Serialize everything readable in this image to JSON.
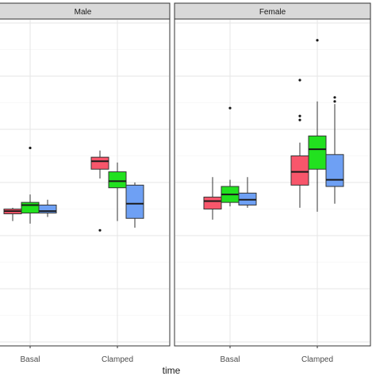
{
  "chart_data": {
    "type": "boxplot",
    "facets": [
      {
        "label": "Male",
        "categories": [
          "Basal",
          "Clamped"
        ],
        "groups": [
          [
            {
              "series": 0,
              "whisker_low": 4.55,
              "q1": 4.82,
              "median": 4.92,
              "q3": 5.0,
              "whisker_high": 5.05,
              "outliers": []
            },
            {
              "series": 1,
              "whisker_low": 4.45,
              "q1": 4.85,
              "median": 5.15,
              "q3": 5.25,
              "whisker_high": 5.55,
              "outliers": [
                7.3
              ]
            },
            {
              "series": 2,
              "whisker_low": 4.7,
              "q1": 4.85,
              "median": 4.92,
              "q3": 5.15,
              "whisker_high": 5.35,
              "outliers": []
            }
          ],
          [
            {
              "series": 0,
              "whisker_low": 6.15,
              "q1": 6.5,
              "median": 6.8,
              "q3": 6.95,
              "whisker_high": 7.2,
              "outliers": [
                4.2
              ]
            },
            {
              "series": 1,
              "whisker_low": 4.55,
              "q1": 5.8,
              "median": 6.05,
              "q3": 6.4,
              "whisker_high": 6.75,
              "outliers": []
            },
            {
              "series": 2,
              "whisker_low": 4.3,
              "q1": 4.65,
              "median": 5.2,
              "q3": 5.9,
              "whisker_high": 6.0,
              "outliers": []
            }
          ]
        ]
      },
      {
        "label": "Female",
        "categories": [
          "Basal",
          "Clamped"
        ],
        "groups": [
          [
            {
              "series": 0,
              "whisker_low": 4.6,
              "q1": 5.0,
              "median": 5.3,
              "q3": 5.45,
              "whisker_high": 6.2,
              "outliers": []
            },
            {
              "series": 1,
              "whisker_low": 5.1,
              "q1": 5.25,
              "median": 5.55,
              "q3": 5.85,
              "whisker_high": 6.1,
              "outliers": [
                8.8
              ]
            },
            {
              "series": 2,
              "whisker_low": 5.05,
              "q1": 5.15,
              "median": 5.35,
              "q3": 5.6,
              "whisker_high": 6.2,
              "outliers": []
            }
          ],
          [
            {
              "series": 0,
              "whisker_low": 5.05,
              "q1": 5.9,
              "median": 6.4,
              "q3": 7.0,
              "whisker_high": 7.5,
              "outliers": [
                9.85,
                8.5,
                8.35
              ]
            },
            {
              "series": 1,
              "whisker_low": 4.9,
              "q1": 6.5,
              "median": 7.25,
              "q3": 7.75,
              "whisker_high": 9.05,
              "outliers": [
                11.35
              ]
            },
            {
              "series": 2,
              "whisker_low": 5.2,
              "q1": 5.85,
              "median": 6.1,
              "q3": 7.05,
              "whisker_high": 8.95,
              "outliers": [
                9.2,
                9.05
              ]
            }
          ]
        ]
      }
    ],
    "series_colors": [
      "#f8566b",
      "#22e11f",
      "#6ea0f4"
    ],
    "xlabel": "time",
    "ylabel": "",
    "ylim": [
      0,
      12
    ],
    "grid": true,
    "legend": "none"
  }
}
